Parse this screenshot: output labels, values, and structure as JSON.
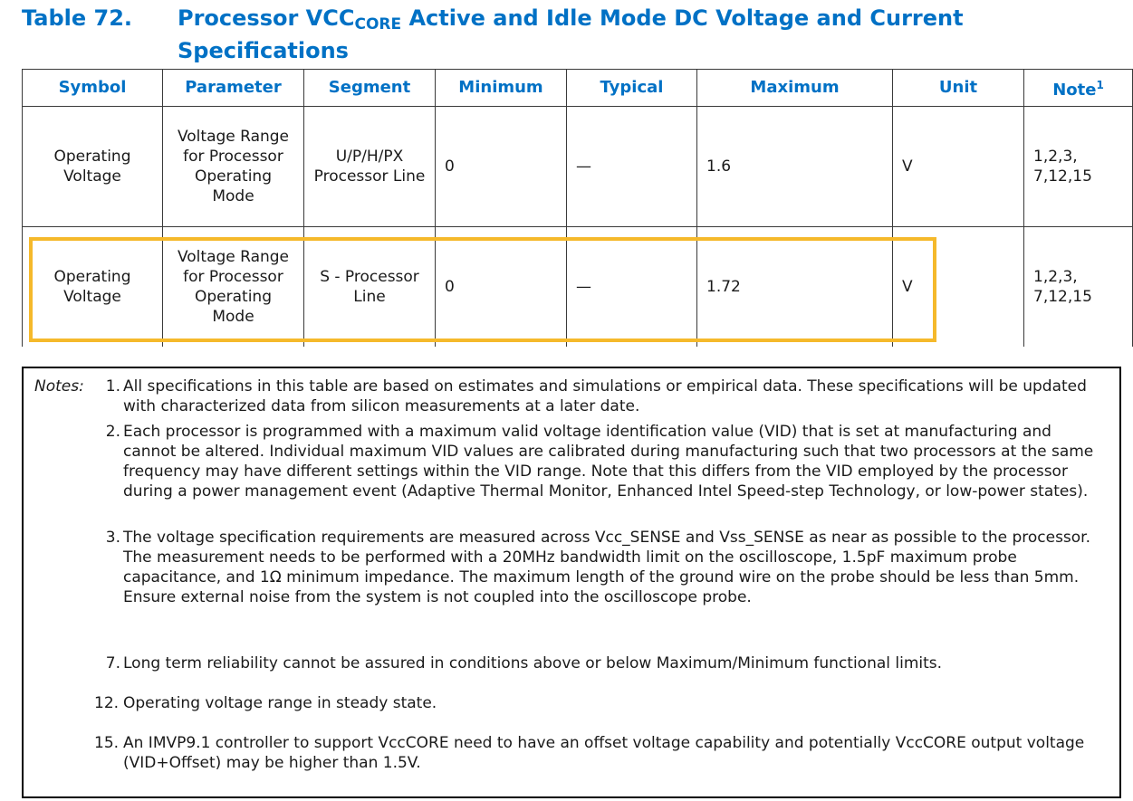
{
  "title": {
    "number": "Table 72.",
    "text_before": "Processor VCC",
    "text_sub": "CORE",
    "text_after": " Active and Idle Mode DC Voltage and Current Specifications"
  },
  "table": {
    "headers": {
      "symbol": "Symbol",
      "parameter": "Parameter",
      "segment": "Segment",
      "minimum": "Minimum",
      "typical": "Typical",
      "maximum": "Maximum",
      "unit": "Unit",
      "note": "Note",
      "note_sup": "1"
    },
    "rows": [
      {
        "symbol": "Operating Voltage",
        "parameter": "Voltage Range for Processor Operating Mode",
        "segment": "U/P/H/PX Processor Line",
        "minimum": "0",
        "typical": "—",
        "maximum": "1.6",
        "unit": "V",
        "note": "1,2,3, 7,12,15"
      },
      {
        "symbol": "Operating Voltage",
        "parameter": "Voltage Range for Processor Operating Mode",
        "segment": "S - Processor Line",
        "minimum": "0",
        "typical": "—",
        "maximum": "1.72",
        "unit": "V",
        "note": "1,2,3, 7,12,15"
      }
    ]
  },
  "notes": {
    "label": "Notes:",
    "items": [
      {
        "num": "1.",
        "text": "All specifications in this table are based on estimates and simulations or empirical data. These specifications will be updated with characterized data from silicon measurements at a later date."
      },
      {
        "num": "2.",
        "text": "Each processor is programmed with a maximum valid voltage identification value (VID) that is set at manufacturing and cannot be altered. Individual maximum VID values are calibrated during manufacturing such that two processors at the same frequency may have different settings within the VID range. Note that this differs from the VID employed by the processor during a power management event (Adaptive Thermal Monitor, Enhanced Intel Speed-step Technology, or low-power states)."
      },
      {
        "num": "3.",
        "text": "The voltage specification requirements are measured across Vcc_SENSE and Vss_SENSE as near as possible to the processor. The measurement needs to be performed with a 20MHz bandwidth limit on the oscilloscope, 1.5pF maximum probe capacitance, and 1Ω minimum impedance. The maximum length of the ground wire on the probe should be less than 5mm. Ensure external noise from the system is not coupled into the oscilloscope probe."
      },
      {
        "num": "7.",
        "text": "Long term reliability cannot be assured in conditions above or below Maximum/Minimum functional limits."
      },
      {
        "num": "12.",
        "text": "Operating voltage range in steady state."
      },
      {
        "num": "15.",
        "text": "An IMVP9.1 controller to support VccCORE need to have an offset voltage capability and potentially VccCORE output voltage (VID+Offset) may be higher than 1.5V."
      }
    ]
  },
  "highlight_color": "#f5b92b",
  "accent_color": "#0071c5"
}
